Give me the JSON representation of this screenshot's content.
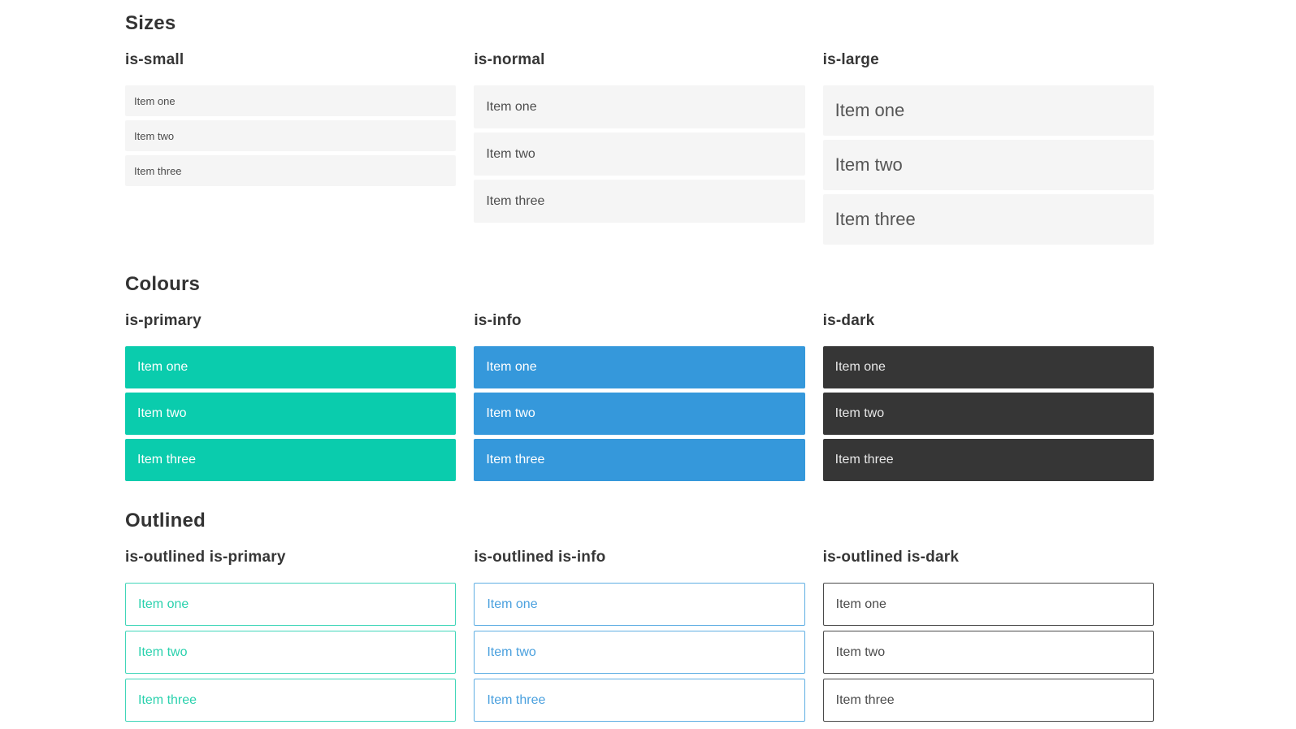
{
  "colors": {
    "primary": "#0accad",
    "info": "#3598db",
    "dark": "#363636",
    "item_bg": "#f5f5f5",
    "item_text": "#4d4d4d",
    "heading_text": "#363636",
    "white_text": "#ffffff",
    "dark_item_text": "#e8e8e8",
    "outlined_primary_text": "#2ad1ad",
    "outlined_primary_border": "#41d6b9",
    "outlined_info_text": "#4aa0de",
    "outlined_info_border": "#5faee3",
    "outlined_dark_text": "#4a4a4a",
    "outlined_dark_border": "#4a4a4a"
  },
  "sections": [
    {
      "id": "sizes",
      "title": "Sizes",
      "columns": [
        {
          "heading": "is-small",
          "variant": "size-small",
          "items": [
            "Item one",
            "Item two",
            "Item three"
          ]
        },
        {
          "heading": "is-normal",
          "variant": "size-normal",
          "items": [
            "Item one",
            "Item two",
            "Item three"
          ]
        },
        {
          "heading": "is-large",
          "variant": "size-large",
          "items": [
            "Item one",
            "Item two",
            "Item three"
          ]
        }
      ]
    },
    {
      "id": "colours",
      "title": "Colours",
      "columns": [
        {
          "heading": "is-primary",
          "variant": "color-primary",
          "items": [
            "Item one",
            "Item two",
            "Item three"
          ]
        },
        {
          "heading": "is-info",
          "variant": "color-info",
          "items": [
            "Item one",
            "Item two",
            "Item three"
          ]
        },
        {
          "heading": "is-dark",
          "variant": "color-dark",
          "items": [
            "Item one",
            "Item two",
            "Item three"
          ]
        }
      ]
    },
    {
      "id": "outlined",
      "title": "Outlined",
      "columns": [
        {
          "heading": "is-outlined is-primary",
          "variant": "outlined-primary",
          "items": [
            "Item one",
            "Item two",
            "Item three"
          ]
        },
        {
          "heading": "is-outlined is-info",
          "variant": "outlined-info",
          "items": [
            "Item one",
            "Item two",
            "Item three"
          ]
        },
        {
          "heading": "is-outlined is-dark",
          "variant": "outlined-dark",
          "items": [
            "Item one",
            "Item two",
            "Item three"
          ]
        }
      ]
    }
  ]
}
